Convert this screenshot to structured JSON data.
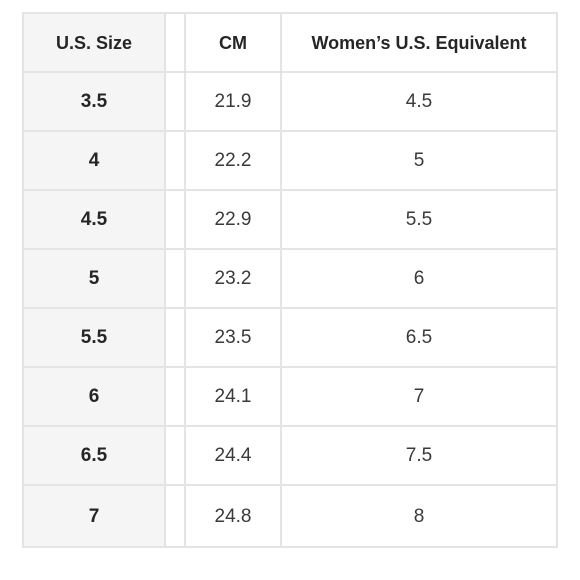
{
  "header": {
    "us_size": "U.S. Size",
    "cm": "CM",
    "women_equivalent": "Women’s U.S. Equivalent"
  },
  "rows": [
    {
      "us_size": "3.5",
      "cm": "21.9",
      "women": "4.5"
    },
    {
      "us_size": "4",
      "cm": "22.2",
      "women": "5"
    },
    {
      "us_size": "4.5",
      "cm": "22.9",
      "women": "5.5"
    },
    {
      "us_size": "5",
      "cm": "23.2",
      "women": "6"
    },
    {
      "us_size": "5.5",
      "cm": "23.5",
      "women": "6.5"
    },
    {
      "us_size": "6",
      "cm": "24.1",
      "women": "7"
    },
    {
      "us_size": "6.5",
      "cm": "24.4",
      "women": "7.5"
    },
    {
      "us_size": "7",
      "cm": "24.8",
      "women": "8"
    }
  ]
}
